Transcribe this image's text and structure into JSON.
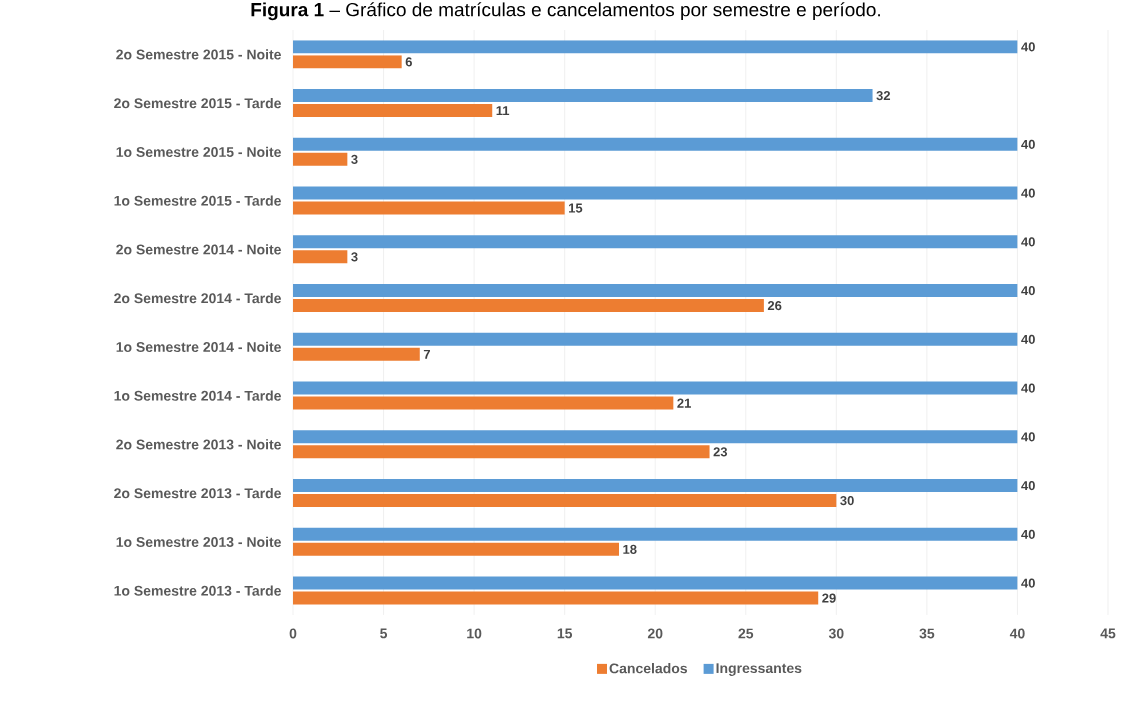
{
  "chart_data": {
    "type": "bar",
    "orientation": "horizontal",
    "title": "**Figura 1** – Gráfico de matrículas e cancelamentos por semestre e período.",
    "categories": [
      "2o Semestre 2015 - Noite",
      "2o Semestre 2015 - Tarde",
      "1o Semestre 2015 - Noite",
      "1o Semestre 2015 - Tarde",
      "2o Semestre 2014 - Noite",
      "2o Semestre 2014 - Tarde",
      "1o Semestre 2014 - Noite",
      "1o Semestre 2014 - Tarde",
      "2o Semestre 2013 - Noite",
      "2o Semestre 2013 - Tarde",
      "1o Semestre 2013 - Noite",
      "1o Semestre 2013 - Tarde"
    ],
    "series": [
      {
        "name": "Cancelados",
        "color": "#ed7d31",
        "values": [
          6,
          11,
          3,
          15,
          3,
          26,
          7,
          21,
          23,
          30,
          18,
          29
        ]
      },
      {
        "name": "Ingressantes",
        "color": "#5b9bd5",
        "values": [
          40,
          32,
          40,
          40,
          40,
          40,
          40,
          40,
          40,
          40,
          40,
          40
        ]
      }
    ],
    "xlim": [
      0,
      45
    ],
    "xticks": [
      0,
      5,
      10,
      15,
      20,
      25,
      30,
      35,
      40,
      45
    ],
    "grid": "x",
    "legend": "bottom",
    "data_labels": true
  }
}
